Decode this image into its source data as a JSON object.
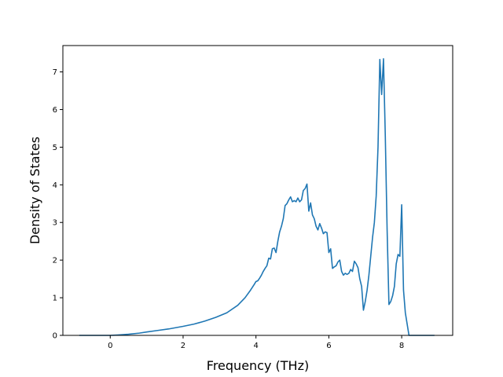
{
  "chart_data": {
    "type": "line",
    "title": "",
    "xlabel": "Frequency (THz)",
    "ylabel": "Density of States",
    "xlim": [
      -1.3,
      9.4
    ],
    "ylim": [
      0,
      7.7
    ],
    "xticks": [
      0,
      2,
      4,
      6,
      8
    ],
    "yticks": [
      0,
      1,
      2,
      3,
      4,
      5,
      6,
      7
    ],
    "grid": false,
    "legend": "none",
    "line_color": "#1f77b4",
    "series": [
      {
        "x": [
          -0.85,
          0.0,
          0.2,
          0.5,
          0.8,
          1.0,
          1.3,
          1.6,
          2.0,
          2.3,
          2.6,
          2.9,
          3.2,
          3.5,
          3.7,
          3.85,
          3.95,
          4.0,
          4.05,
          4.1,
          4.15,
          4.2,
          4.25,
          4.3,
          4.35,
          4.4,
          4.45,
          4.5,
          4.55,
          4.6,
          4.65,
          4.7,
          4.75,
          4.8,
          4.85,
          4.9,
          4.95,
          5.0,
          5.05,
          5.1,
          5.15,
          5.2,
          5.25,
          5.3,
          5.35,
          5.4,
          5.45,
          5.5,
          5.55,
          5.6,
          5.65,
          5.7,
          5.75,
          5.8,
          5.85,
          5.9,
          5.95,
          6.0,
          6.05,
          6.1,
          6.15,
          6.2,
          6.25,
          6.3,
          6.35,
          6.4,
          6.45,
          6.5,
          6.55,
          6.6,
          6.65,
          6.7,
          6.75,
          6.8,
          6.85,
          6.9,
          6.95,
          7.0,
          7.05,
          7.1,
          7.15,
          7.2,
          7.25,
          7.3,
          7.35,
          7.4,
          7.45,
          7.5,
          7.55,
          7.6,
          7.65,
          7.7,
          7.75,
          7.8,
          7.85,
          7.9,
          7.95,
          8.0,
          8.05,
          8.1,
          8.2,
          8.9
        ],
        "y": [
          0.0,
          0.0,
          0.01,
          0.03,
          0.06,
          0.09,
          0.13,
          0.17,
          0.24,
          0.3,
          0.38,
          0.48,
          0.6,
          0.8,
          1.0,
          1.2,
          1.35,
          1.43,
          1.45,
          1.52,
          1.6,
          1.7,
          1.78,
          1.85,
          2.05,
          2.03,
          2.3,
          2.32,
          2.2,
          2.5,
          2.75,
          2.9,
          3.1,
          3.45,
          3.5,
          3.6,
          3.68,
          3.55,
          3.58,
          3.55,
          3.65,
          3.55,
          3.6,
          3.85,
          3.9,
          4.02,
          3.3,
          3.52,
          3.2,
          3.1,
          2.9,
          2.8,
          2.97,
          2.85,
          2.7,
          2.75,
          2.73,
          2.2,
          2.3,
          1.78,
          1.82,
          1.85,
          1.95,
          2.0,
          1.7,
          1.6,
          1.65,
          1.62,
          1.65,
          1.75,
          1.7,
          1.97,
          1.9,
          1.8,
          1.5,
          1.3,
          0.67,
          0.9,
          1.2,
          1.6,
          2.1,
          2.6,
          3.0,
          3.7,
          5.0,
          7.33,
          6.4,
          7.35,
          5.3,
          2.8,
          0.82,
          0.9,
          1.05,
          1.3,
          1.9,
          2.15,
          2.1,
          3.47,
          1.2,
          0.6,
          0.0,
          0.0
        ]
      }
    ]
  }
}
